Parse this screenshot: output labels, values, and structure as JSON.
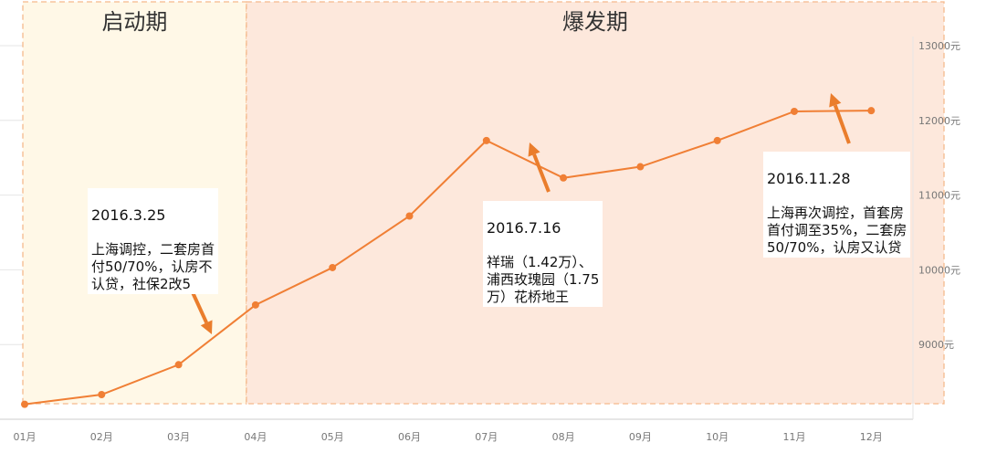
{
  "chart_data": {
    "type": "line",
    "categories": [
      "01月",
      "02月",
      "03月",
      "04月",
      "05月",
      "06月",
      "07月",
      "08月",
      "09月",
      "10月",
      "11月",
      "12月"
    ],
    "values": [
      8200,
      8330,
      8730,
      9530,
      10030,
      10720,
      11730,
      11230,
      11380,
      11730,
      12120,
      12130
    ],
    "y_ticks": [
      "9000元",
      "10000元",
      "11000元",
      "12000元",
      "13000元"
    ],
    "ylim": [
      8000,
      13000
    ],
    "grid": true,
    "line_color": "#f07f35",
    "phases": [
      {
        "label": "启动期",
        "from": "01月",
        "to": "04月",
        "color": "#fff8e7"
      },
      {
        "label": "爆发期",
        "from": "04月",
        "to": "12月",
        "color": "#fde8dc"
      }
    ],
    "annotations": [
      {
        "date": "2016.3.25",
        "text": "上海调控，二套房首\n付50/70%，认房不\n认贷，社保2改5",
        "arrow": "down"
      },
      {
        "date": "2016.7.16",
        "text": "祥瑞（1.42万）、\n浦西玫瑰园（1.75\n万）花桥地王",
        "arrow": "up"
      },
      {
        "date": "2016.11.28",
        "text": "上海再次调控，首套房\n首付调至35%，二套房\n50/70%，认房又认贷",
        "arrow": "up"
      }
    ]
  }
}
